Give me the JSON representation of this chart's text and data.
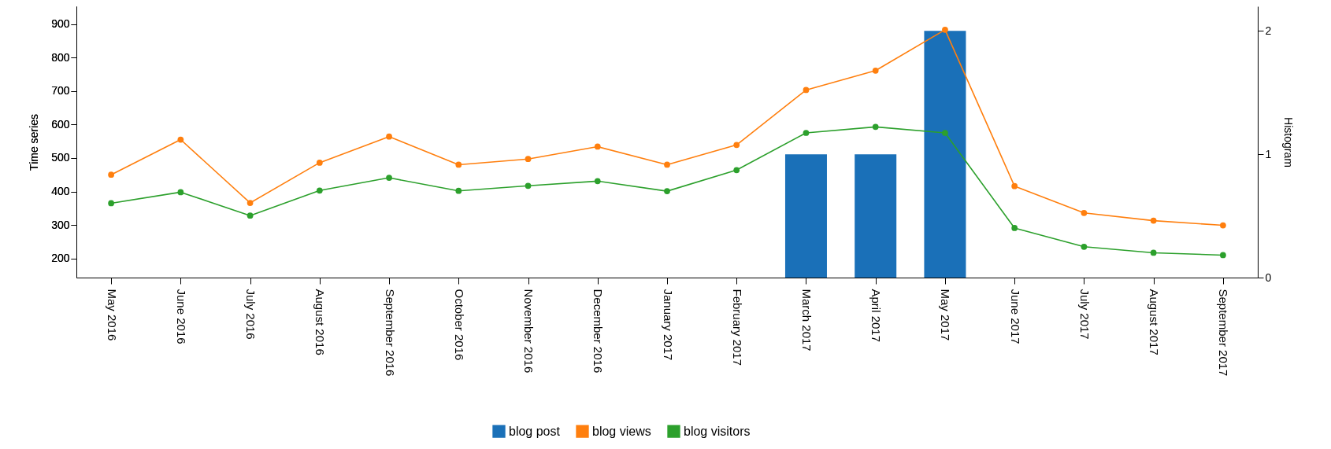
{
  "chart_data": {
    "type": "line",
    "ylabel": "Time series",
    "y2label": "Histogram",
    "categories": [
      "May 2016",
      "June 2016",
      "July 2016",
      "August 2016",
      "September 2016",
      "October 2016",
      "November 2016",
      "December 2016",
      "January 2017",
      "February 2017",
      "March 2017",
      "April 2017",
      "May 2017",
      "June 2017",
      "July 2017",
      "August 2017",
      "September 2017"
    ],
    "series": [
      {
        "name": "blog post",
        "type": "bar",
        "axis": "y2",
        "color": "#1a70b8",
        "values": [
          0,
          0,
          0,
          0,
          0,
          0,
          0,
          0,
          0,
          0,
          1,
          1,
          2,
          0,
          0,
          0,
          0
        ]
      },
      {
        "name": "blog views",
        "color": "#ff7f0e",
        "values": [
          450,
          555,
          366,
          486,
          564,
          480,
          497,
          534,
          480,
          539,
          703,
          761,
          883,
          416,
          336,
          313,
          299
        ]
      },
      {
        "name": "blog visitors",
        "color": "#2ca02c",
        "values": [
          365,
          398,
          328,
          403,
          441,
          402,
          417,
          431,
          401,
          464,
          575,
          593,
          575,
          291,
          235,
          217,
          210
        ]
      }
    ],
    "ylim": [
      143,
      953
    ],
    "yticks": [
      200,
      300,
      400,
      500,
      600,
      700,
      800,
      900
    ],
    "y2lim": [
      0,
      2.2
    ],
    "y2ticks": [
      0,
      1,
      2
    ],
    "marker": "circle",
    "legend": "bottom"
  }
}
